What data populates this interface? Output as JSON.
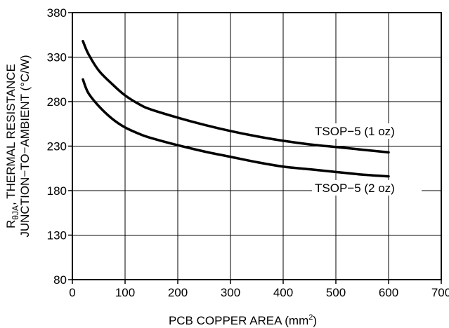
{
  "chart_data": {
    "type": "line",
    "xlabel": {
      "text": "PCB COPPER AREA (mm",
      "sup": "2",
      "tail": ")"
    },
    "ylabel": {
      "line1_prefix": "R",
      "line1_sub": "θJA",
      "line1_rest": ", THERMAL RESISTANCE",
      "line2": "JUNCTION−TO−AMBIENT (°C/W)"
    },
    "xlim": [
      0,
      700
    ],
    "ylim": [
      80,
      380
    ],
    "xticks": [
      0,
      100,
      200,
      300,
      400,
      500,
      600,
      700
    ],
    "yticks": [
      80,
      130,
      180,
      230,
      280,
      330,
      380
    ],
    "grid": true,
    "series": [
      {
        "name": "TSOP−5 (1 oz)",
        "color": "#000000",
        "x": [
          20,
          30,
          50,
          75,
          100,
          130,
          150,
          200,
          250,
          300,
          350,
          400,
          450,
          500,
          550,
          600
        ],
        "y": [
          348,
          334,
          315,
          300,
          287,
          276,
          271,
          262,
          254,
          247,
          241,
          236,
          232,
          229,
          226,
          223
        ]
      },
      {
        "name": "TSOP−5 (2 oz)",
        "color": "#000000",
        "x": [
          20,
          30,
          50,
          75,
          100,
          130,
          150,
          200,
          250,
          300,
          350,
          400,
          450,
          500,
          550,
          600
        ],
        "y": [
          305,
          290,
          275,
          261,
          251,
          243,
          239,
          231,
          224,
          218,
          212,
          207,
          204,
          201,
          198,
          196
        ]
      }
    ]
  }
}
